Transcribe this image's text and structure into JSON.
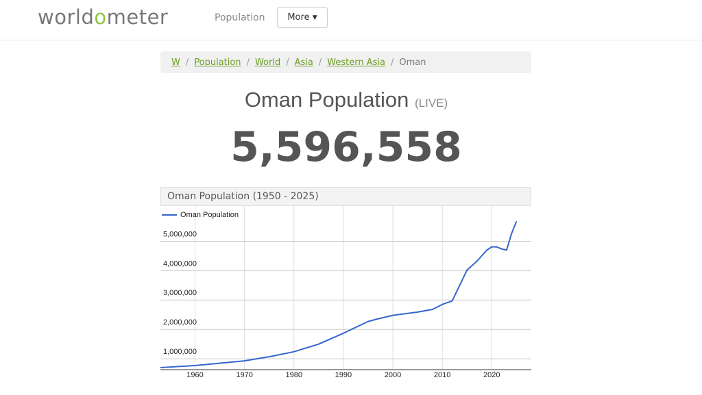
{
  "header": {
    "logo_parts": [
      "world",
      "o",
      "meter"
    ],
    "nav": [
      "Population"
    ],
    "more": "More"
  },
  "breadcrumb": [
    "W",
    "Population",
    "World",
    "Asia",
    "Western Asia",
    "Oman"
  ],
  "page_title": "Oman Population",
  "live": "(LIVE)",
  "counter": "5,596,558",
  "chart_data": {
    "type": "line",
    "title": "Oman Population (1950 - 2025)",
    "x": [
      1953,
      1960,
      1970,
      1975,
      1980,
      1985,
      1990,
      1995,
      1997,
      2000,
      2005,
      2008,
      2010,
      2012,
      2014,
      2015,
      2017,
      2019,
      2020,
      2021,
      2022,
      2023,
      2024,
      2025
    ],
    "series": [
      {
        "name": "Oman Population",
        "color": "#3366cc",
        "values": [
          700000,
          770000,
          930000,
          1070000,
          1240000,
          1500000,
          1870000,
          2270000,
          2360000,
          2480000,
          2590000,
          2680000,
          2850000,
          2970000,
          3670000,
          4020000,
          4320000,
          4700000,
          4810000,
          4810000,
          4740000,
          4700000,
          5260000,
          5680000
        ]
      }
    ],
    "xlim": [
      1953,
      2028
    ],
    "xticks": [
      1960,
      1970,
      1980,
      1990,
      2000,
      2010,
      2020
    ],
    "ylim": [
      630000,
      6200000
    ],
    "yticks": [
      {
        "value": 1000000,
        "label": "1,000,000"
      },
      {
        "value": 2000000,
        "label": "2,000,000"
      },
      {
        "value": 3000000,
        "label": "3,000,000"
      },
      {
        "value": 4000000,
        "label": "4,000,000"
      },
      {
        "value": 5000000,
        "label": "5,000,000"
      }
    ],
    "grid": true
  }
}
